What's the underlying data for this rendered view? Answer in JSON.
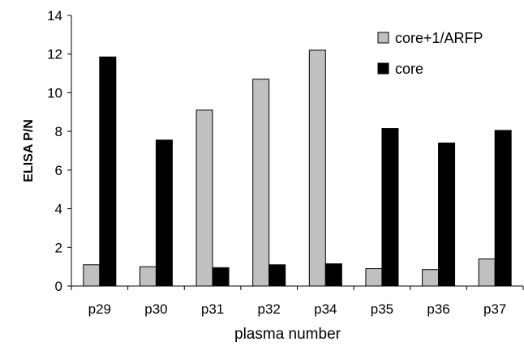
{
  "chart_data": {
    "type": "bar",
    "title": "",
    "xlabel": "plasma number",
    "ylabel": "ELISA P/N",
    "ylim": [
      0,
      14
    ],
    "yticks": [
      0,
      2,
      4,
      6,
      8,
      10,
      12,
      14
    ],
    "grid": false,
    "legend_position": "top-right",
    "categories": [
      "p29",
      "p30",
      "p31",
      "p32",
      "p34",
      "p35",
      "p36",
      "p37"
    ],
    "series": [
      {
        "name": "core+1/ARFP",
        "color": "#c0c0c0",
        "values": [
          1.1,
          1.0,
          9.1,
          10.7,
          12.2,
          0.9,
          0.85,
          1.4
        ]
      },
      {
        "name": "core",
        "color": "#000000",
        "values": [
          11.85,
          7.55,
          0.95,
          1.1,
          1.15,
          8.15,
          7.4,
          8.05
        ]
      }
    ]
  }
}
